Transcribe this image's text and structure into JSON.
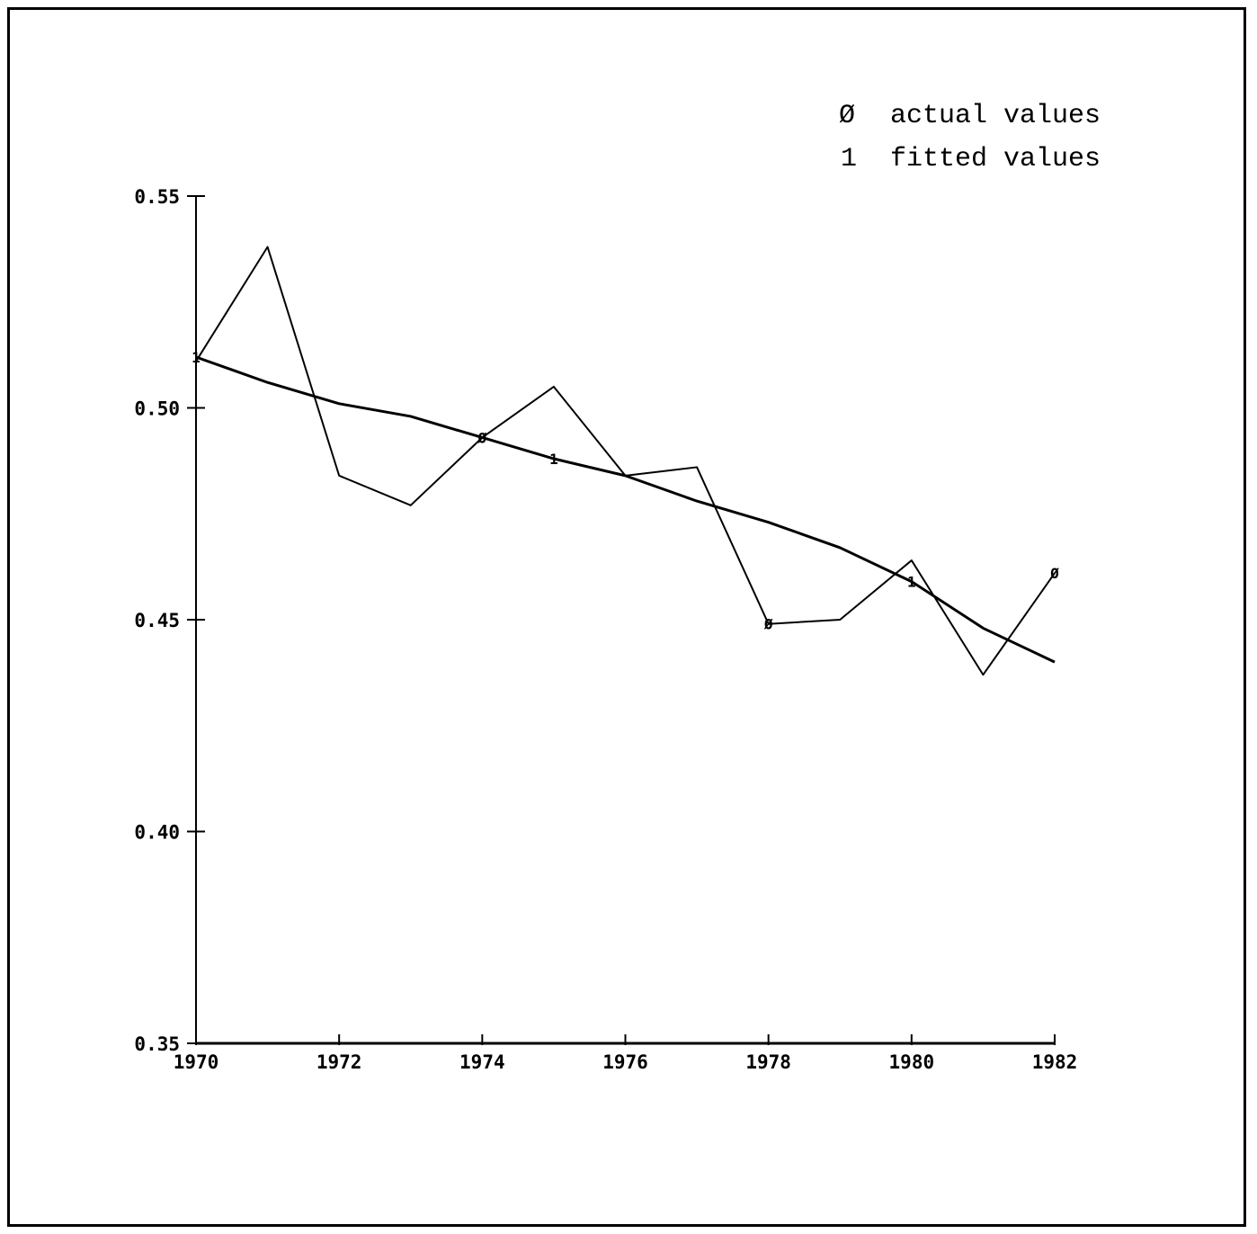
{
  "chart_data": {
    "type": "line",
    "x": [
      1970,
      1971,
      1972,
      1973,
      1974,
      1975,
      1976,
      1977,
      1978,
      1979,
      1980,
      1981,
      1982
    ],
    "series": [
      {
        "name": "actual values",
        "symbol": "Ø",
        "values": [
          0.511,
          0.538,
          0.484,
          0.477,
          0.493,
          0.505,
          0.484,
          0.486,
          0.449,
          0.45,
          0.464,
          0.437,
          0.461
        ]
      },
      {
        "name": "fitted values",
        "symbol": "1",
        "values": [
          0.512,
          0.506,
          0.501,
          0.498,
          0.493,
          0.488,
          0.484,
          0.478,
          0.473,
          0.467,
          0.459,
          0.448,
          0.44
        ]
      }
    ],
    "xlim": [
      1970,
      1982
    ],
    "ylim": [
      0.35,
      0.55
    ],
    "xticks": [
      1970,
      1972,
      1974,
      1976,
      1978,
      1980,
      1982
    ],
    "xtick_labels": [
      "1970",
      "1972",
      "1974",
      "1976",
      "1978",
      "1980",
      "1982"
    ],
    "yticks": [
      0.35,
      0.4,
      0.45,
      0.5,
      0.55
    ],
    "ytick_labels": [
      "0.35",
      "0.40",
      "0.45",
      "0.50",
      "0.55"
    ],
    "marker_years": [
      1970,
      1974,
      1975,
      1978,
      1980,
      1982
    ],
    "legend_position": "top-right",
    "grid": false,
    "line_color": "#000000"
  }
}
